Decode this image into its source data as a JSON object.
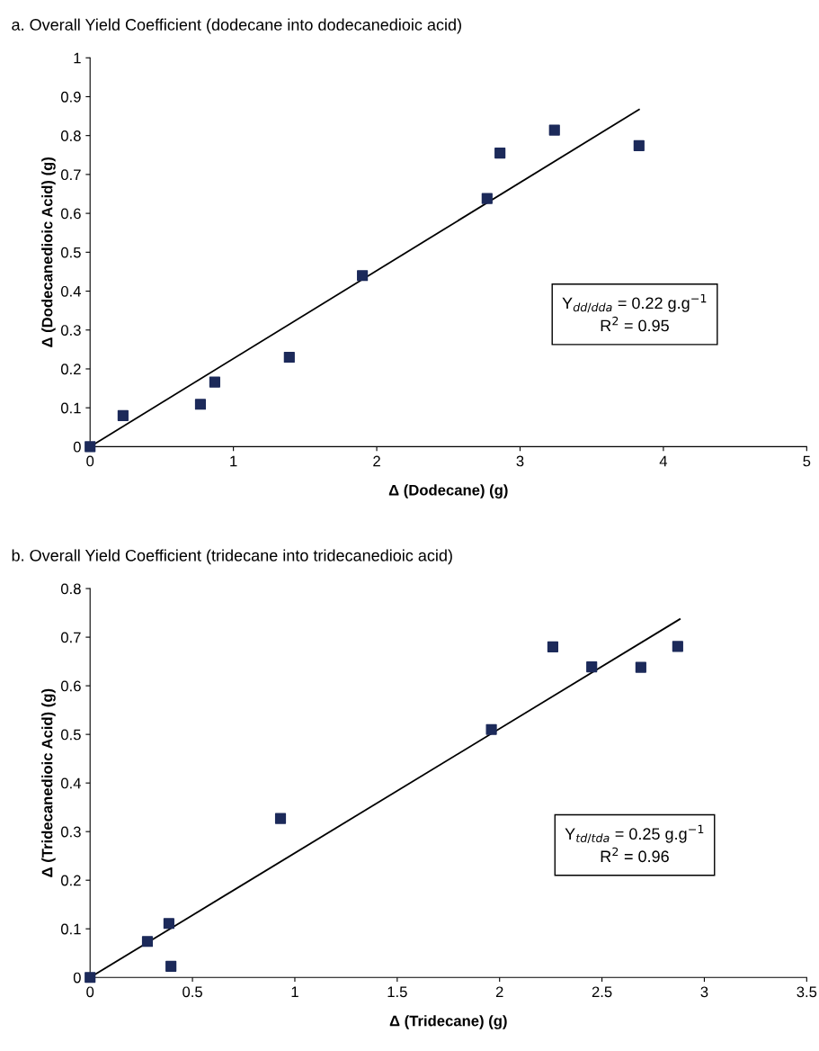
{
  "chart_data": [
    {
      "type": "scatter",
      "title": "a. Overall Yield Coefficient (dodecane into dodecanedioic acid)",
      "xlabel": "Δ (Dodecane) (g)",
      "ylabel": "Δ (Dodecanedioic Acid) (g)",
      "x": [
        0,
        0.23,
        0.77,
        0.87,
        1.39,
        1.9,
        2.77,
        2.86,
        3.24,
        3.83
      ],
      "series": [
        {
          "color": "#1c2a5a",
          "marker": "square",
          "values": [
            0,
            0.08,
            0.109,
            0.166,
            0.23,
            0.44,
            0.638,
            0.755,
            0.814,
            0.774
          ]
        },
        {
          "type": "line",
          "color": "#000000",
          "x": [
            0,
            3.83
          ],
          "values": [
            0,
            0.867
          ],
          "marker": "none"
        }
      ],
      "xlim": [
        0,
        5
      ],
      "xticks": [
        0,
        1,
        2,
        3,
        4,
        5
      ],
      "ylim": [
        0,
        1
      ],
      "yticks": [
        0,
        0.1,
        0.2,
        0.3,
        0.4,
        0.5,
        0.6,
        0.7,
        0.8,
        0.9,
        1
      ],
      "grid": false,
      "legend": false,
      "annotations": [
        "Y$_{dd/dda}$ = 0.22 g.g$^{−1}$",
        "R$^{2}$ = 0.95"
      ]
    },
    {
      "type": "scatter",
      "title": "b. Overall Yield Coefficient (tridecane into tridecanedioic acid)",
      "xlabel": "Δ (Tridecane) (g)",
      "ylabel": "Δ (Tridecanedioic Acid) (g)",
      "x": [
        0,
        0.28,
        0.385,
        0.395,
        0.93,
        1.96,
        2.26,
        2.45,
        2.69,
        2.87
      ],
      "series": [
        {
          "color": "#1c2a5a",
          "marker": "square",
          "values": [
            0,
            0.074,
            0.111,
            0.023,
            0.327,
            0.51,
            0.68,
            0.639,
            0.638,
            0.681
          ]
        },
        {
          "type": "line",
          "color": "#000000",
          "x": [
            0,
            2.88
          ],
          "values": [
            0,
            0.737
          ],
          "marker": "none"
        }
      ],
      "xlim": [
        0,
        3.5
      ],
      "xticks": [
        0,
        0.5,
        1,
        1.5,
        2,
        2.5,
        3,
        3.5
      ],
      "ylim": [
        0,
        0.8
      ],
      "yticks": [
        0,
        0.1,
        0.2,
        0.3,
        0.4,
        0.5,
        0.6,
        0.7,
        0.8
      ],
      "grid": false,
      "legend": false,
      "annotations": [
        "Y$_{td/tda}$ = 0.25 g.g$^{−1}$",
        "R$^{2}$ = 0.96"
      ]
    }
  ]
}
